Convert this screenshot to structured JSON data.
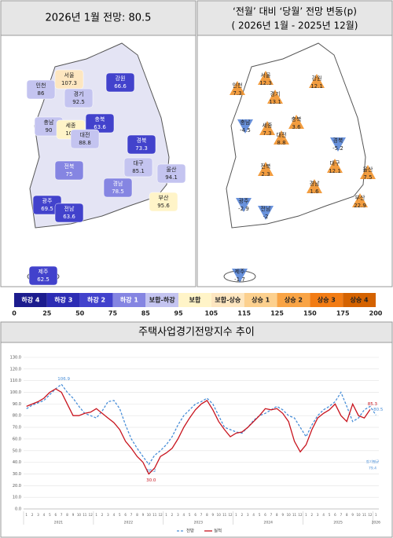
{
  "header": {
    "left": "2026년 1월 전망: 80.5",
    "right_line1": "‘전월’ 대비 ‘당월’ 전망 변동(p)",
    "right_line2": "( 2026년 1월 -  2025년 12월)"
  },
  "map_left": {
    "regions": [
      {
        "name": "인천",
        "value": 86.0
      },
      {
        "name": "서울",
        "value": 107.3
      },
      {
        "name": "경기",
        "value": 92.5
      },
      {
        "name": "강원",
        "value": 66.6
      },
      {
        "name": "충북",
        "value": 63.6
      },
      {
        "name": "충남",
        "value": 90.0
      },
      {
        "name": "세종",
        "value": 100
      },
      {
        "name": "대전",
        "value": 88.8
      },
      {
        "name": "경북",
        "value": 73.3
      },
      {
        "name": "대구",
        "value": 85.1
      },
      {
        "name": "울산",
        "value": 94.1
      },
      {
        "name": "전북",
        "value": 75
      },
      {
        "name": "경남",
        "value": 78.5
      },
      {
        "name": "부산",
        "value": 95.6
      },
      {
        "name": "광주",
        "value": 69.5
      },
      {
        "name": "전남",
        "value": 63.6
      },
      {
        "name": "제주",
        "value": 62.5
      }
    ]
  },
  "map_right": {
    "up_color": "#f08c1e",
    "down_color": "#4f7fd6",
    "regions": [
      {
        "name": "인천",
        "value": 7.3
      },
      {
        "name": "서울",
        "value": 12.3
      },
      {
        "name": "경기",
        "value": 13.1
      },
      {
        "name": "강원",
        "value": 12.1
      },
      {
        "name": "충북",
        "value": 3.6
      },
      {
        "name": "충남",
        "value": -4.5
      },
      {
        "name": "세종",
        "value": 7.3
      },
      {
        "name": "대전",
        "value": 8.8
      },
      {
        "name": "경북",
        "value": -5.2
      },
      {
        "name": "대구",
        "value": 12.1
      },
      {
        "name": "울산",
        "value": 7.5
      },
      {
        "name": "전북",
        "value": 2.3
      },
      {
        "name": "경남",
        "value": 1.6
      },
      {
        "name": "부산",
        "value": 22.9
      },
      {
        "name": "광주",
        "value": -2.9
      },
      {
        "name": "전남",
        "value": -2
      },
      {
        "name": "제주",
        "value": -1.7
      }
    ]
  },
  "legend": {
    "bins": [
      {
        "label": "하강 4",
        "color": "#1c1c8e"
      },
      {
        "label": "하강 3",
        "color": "#2c2cb4"
      },
      {
        "label": "하강 2",
        "color": "#4242cc"
      },
      {
        "label": "하강 1",
        "color": "#8585e2"
      },
      {
        "label": "보합-하강",
        "color": "#c4c4f0"
      },
      {
        "label": "보합",
        "color": "#fff4c8"
      },
      {
        "label": "보합-상승",
        "color": "#fde6c0"
      },
      {
        "label": "상승 1",
        "color": "#fcd08e"
      },
      {
        "label": "상승 2",
        "color": "#f9a445"
      },
      {
        "label": "상승 3",
        "color": "#f27c14"
      },
      {
        "label": "상승 4",
        "color": "#d46200"
      }
    ],
    "ticks": [
      0,
      25,
      50,
      75,
      85,
      95,
      105,
      115,
      125,
      150,
      175,
      200
    ]
  },
  "chart_data": {
    "type": "line",
    "title": "주택사업경기전망지수 추이",
    "categories": [
      "1",
      "2",
      "3",
      "4",
      "5",
      "6",
      "7",
      "8",
      "9",
      "10",
      "11",
      "12",
      "1",
      "2",
      "3",
      "4",
      "5",
      "6",
      "7",
      "8",
      "9",
      "10",
      "11",
      "12",
      "1",
      "2",
      "3",
      "4",
      "5",
      "6",
      "7",
      "8",
      "9",
      "10",
      "11",
      "12",
      "1",
      "2",
      "3",
      "4",
      "5",
      "6",
      "7",
      "8",
      "9",
      "10",
      "11",
      "12",
      "1",
      "2",
      "3",
      "4",
      "5",
      "6",
      "7",
      "8",
      "9",
      "10",
      "11",
      "12",
      "1"
    ],
    "years": [
      "2021",
      "2022",
      "2023",
      "2024",
      "2025",
      "2026"
    ],
    "ylim": [
      0,
      130
    ],
    "yticks": [
      {
        "value": 0,
        "label": "0.0"
      },
      {
        "value": 10,
        "label": "10.0"
      },
      {
        "value": 20,
        "label": "20.0"
      },
      {
        "value": 30,
        "label": "30.0"
      },
      {
        "value": 40,
        "label": "40.0"
      },
      {
        "value": 50,
        "label": "50.0"
      },
      {
        "value": 60,
        "label": "60.0"
      },
      {
        "value": 70,
        "label": "70.0"
      },
      {
        "value": 80,
        "label": "80.0"
      },
      {
        "value": 90,
        "label": "90.0"
      },
      {
        "value": 100,
        "label": "100.0"
      },
      {
        "value": 110,
        "label": "110.0"
      },
      {
        "value": 120,
        "label": "120.0"
      },
      {
        "value": 130,
        "label": "130.0"
      }
    ],
    "grid": true,
    "series": [
      {
        "name": "전망",
        "color": "#4a8fd8",
        "dashed": true,
        "values": [
          86,
          89,
          91,
          93,
          98,
          103,
          106.9,
          100,
          95,
          88,
          82,
          80,
          78,
          84,
          92,
          93,
          86,
          72,
          60,
          52,
          45,
          38.2,
          46,
          50,
          55,
          62,
          72,
          80,
          85,
          90,
          92,
          95,
          90,
          80,
          70,
          68,
          66,
          65,
          70,
          76,
          80,
          82,
          85,
          88,
          85,
          80,
          78,
          70,
          62,
          72,
          80,
          85,
          88,
          92,
          100,
          88,
          75,
          78,
          85,
          88,
          80.5
        ],
        "value_labels": [
          null,
          null,
          null,
          null,
          null,
          null,
          "106.9",
          null,
          null,
          null,
          null,
          null,
          null,
          null,
          null,
          null,
          null,
          null,
          null,
          null,
          null,
          "38.2",
          null,
          null,
          null,
          null,
          null,
          null,
          null,
          null,
          null,
          null,
          null,
          null,
          null,
          null,
          null,
          null,
          null,
          null,
          null,
          null,
          null,
          null,
          null,
          null,
          null,
          null,
          null,
          null,
          null,
          null,
          null,
          null,
          null,
          null,
          null,
          null,
          null,
          null,
          "80.5"
        ]
      },
      {
        "name": "실적",
        "color": "#c8141e",
        "dashed": false,
        "values": [
          88,
          90,
          92,
          95,
          100,
          103,
          100,
          90,
          80,
          80,
          82,
          83,
          86,
          82,
          78,
          74,
          68,
          58,
          52,
          45,
          40,
          30.0,
          35,
          45,
          48,
          52,
          60,
          70,
          78,
          85,
          90,
          93,
          85,
          75,
          68,
          62,
          65,
          66,
          70,
          75,
          80,
          86,
          85,
          86,
          82,
          75,
          58,
          49,
          55,
          68,
          78,
          82,
          85,
          90,
          80,
          75,
          90,
          80,
          78,
          85.3,
          null
        ],
        "value_labels": [
          null,
          null,
          null,
          null,
          null,
          null,
          null,
          null,
          null,
          null,
          null,
          null,
          null,
          null,
          null,
          null,
          null,
          null,
          null,
          null,
          null,
          "30.0",
          null,
          null,
          null,
          null,
          null,
          null,
          null,
          null,
          null,
          null,
          null,
          null,
          null,
          null,
          null,
          null,
          null,
          null,
          null,
          null,
          null,
          null,
          null,
          null,
          null,
          null,
          null,
          null,
          null,
          null,
          null,
          null,
          null,
          null,
          null,
          null,
          null,
          "85.3",
          null
        ]
      }
    ],
    "average": {
      "label": "장기평균",
      "value": 79.4
    }
  }
}
